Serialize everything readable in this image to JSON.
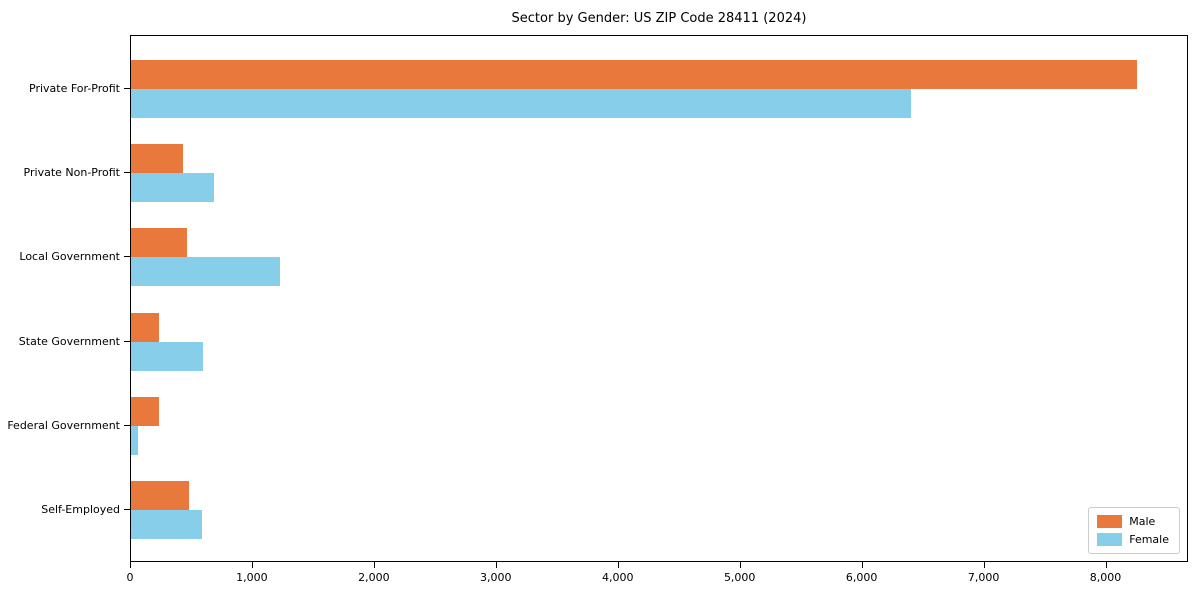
{
  "chart_data": {
    "type": "bar",
    "orientation": "horizontal",
    "title": "Sector by Gender: US ZIP Code 28411 (2024)",
    "categories": [
      "Private For-Profit",
      "Private Non-Profit",
      "Local Government",
      "State Government",
      "Federal Government",
      "Self-Employed"
    ],
    "series": [
      {
        "name": "Male",
        "color": "#e8783c",
        "values": [
          8250,
          430,
          460,
          230,
          230,
          475
        ]
      },
      {
        "name": "Female",
        "color": "#87ceeb",
        "values": [
          6400,
          680,
          1220,
          590,
          55,
          585
        ]
      }
    ],
    "xlabel": "",
    "ylabel": "",
    "xlim": [
      0,
      8660
    ],
    "x_ticks": [
      {
        "value": 0,
        "label": "0"
      },
      {
        "value": 1000,
        "label": "1,000"
      },
      {
        "value": 2000,
        "label": "2,000"
      },
      {
        "value": 3000,
        "label": "3,000"
      },
      {
        "value": 4000,
        "label": "4,000"
      },
      {
        "value": 5000,
        "label": "5,000"
      },
      {
        "value": 6000,
        "label": "6,000"
      },
      {
        "value": 7000,
        "label": "7,000"
      },
      {
        "value": 8000,
        "label": "8,000"
      }
    ],
    "grid": false,
    "legend_position": "lower right"
  }
}
